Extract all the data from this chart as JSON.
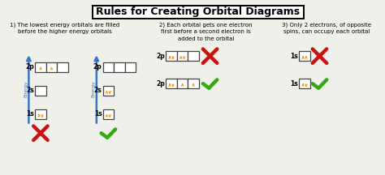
{
  "title": "Rules for Creating Orbital Diagrams",
  "bg_color": "#f0f0eb",
  "rule1_text": "1) The lowest energy orbitals are filled\nbefore the higher energy orbitals",
  "rule2_text": "2) Each orbital gets one electron\nfirst before a second electron is\nadded to the orbital",
  "rule3_text": "3) Only 2 electrons, of opposite\nspins, can occupy each orbital",
  "arrow_color": "#3377cc",
  "electron_color": "#e8a020",
  "wrong_color": "#cc1111",
  "right_color": "#33aa11",
  "label_color": "#000000",
  "title_fontsize": 9,
  "rule_fontsize": 5.0,
  "label_fontsize": 5.5
}
